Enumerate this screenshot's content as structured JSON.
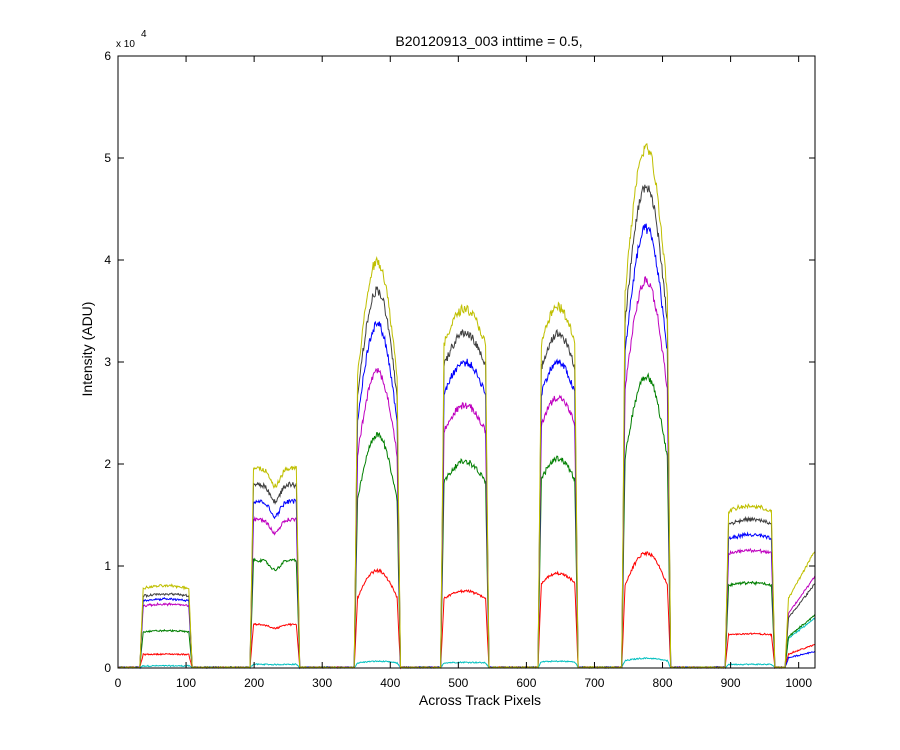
{
  "chart_data": {
    "type": "line",
    "title": "B20120913_003 inttime = 0.5,",
    "xlabel": "Across Track Pixels",
    "ylabel": "Intensity (ADU)",
    "y_multiplier_prefix": "x 10",
    "y_multiplier_exponent": "4",
    "xlim": [
      0,
      1024
    ],
    "ylim": [
      0,
      60000
    ],
    "xticks": [
      0,
      100,
      200,
      300,
      400,
      500,
      600,
      700,
      800,
      900,
      1000
    ],
    "yticks": [
      0,
      1,
      2,
      3,
      4,
      5,
      6
    ],
    "grid": false,
    "legend": "none",
    "colors": [
      "#bfbf00",
      "#404040",
      "#0000ff",
      "#bf00bf",
      "#007f00",
      "#ff0000",
      "#00bfbf"
    ],
    "fibers": [
      {
        "start": 37,
        "end": 104,
        "peak_x": 70,
        "shape": "flat",
        "levels": [
          8000,
          7200,
          6700,
          6200,
          3600,
          1300,
          150
        ]
      },
      {
        "start": 199,
        "end": 262,
        "peak_x": 230,
        "shape": "dip",
        "levels": [
          19500,
          17900,
          16300,
          14500,
          10500,
          4200,
          300
        ]
      },
      {
        "start": 352,
        "end": 410,
        "peak_x": 380,
        "shape": "peak",
        "levels": [
          39800,
          37000,
          33700,
          29000,
          22800,
          9500,
          600
        ]
      },
      {
        "start": 479,
        "end": 540,
        "peak_x": 515,
        "shape": "round",
        "levels": [
          35200,
          32800,
          29900,
          25700,
          20200,
          7500,
          500
        ]
      },
      {
        "start": 622,
        "end": 671,
        "peak_x": 640,
        "shape": "round",
        "levels": [
          35300,
          32700,
          29900,
          26500,
          20500,
          9200,
          600
        ]
      },
      {
        "start": 745,
        "end": 807,
        "peak_x": 776,
        "shape": "peak",
        "levels": [
          51000,
          47200,
          43000,
          37900,
          28600,
          11200,
          900
        ]
      },
      {
        "start": 897,
        "end": 960,
        "peak_x": 928,
        "shape": "flat",
        "levels": [
          15800,
          14500,
          13000,
          11500,
          8300,
          3300,
          300
        ]
      },
      {
        "start": 985,
        "end": 1040,
        "peak_x": 1025,
        "shape": "rising",
        "levels": [
          12300,
          8800,
          1700,
          9600,
          5500,
          2400,
          5200
        ]
      }
    ]
  }
}
